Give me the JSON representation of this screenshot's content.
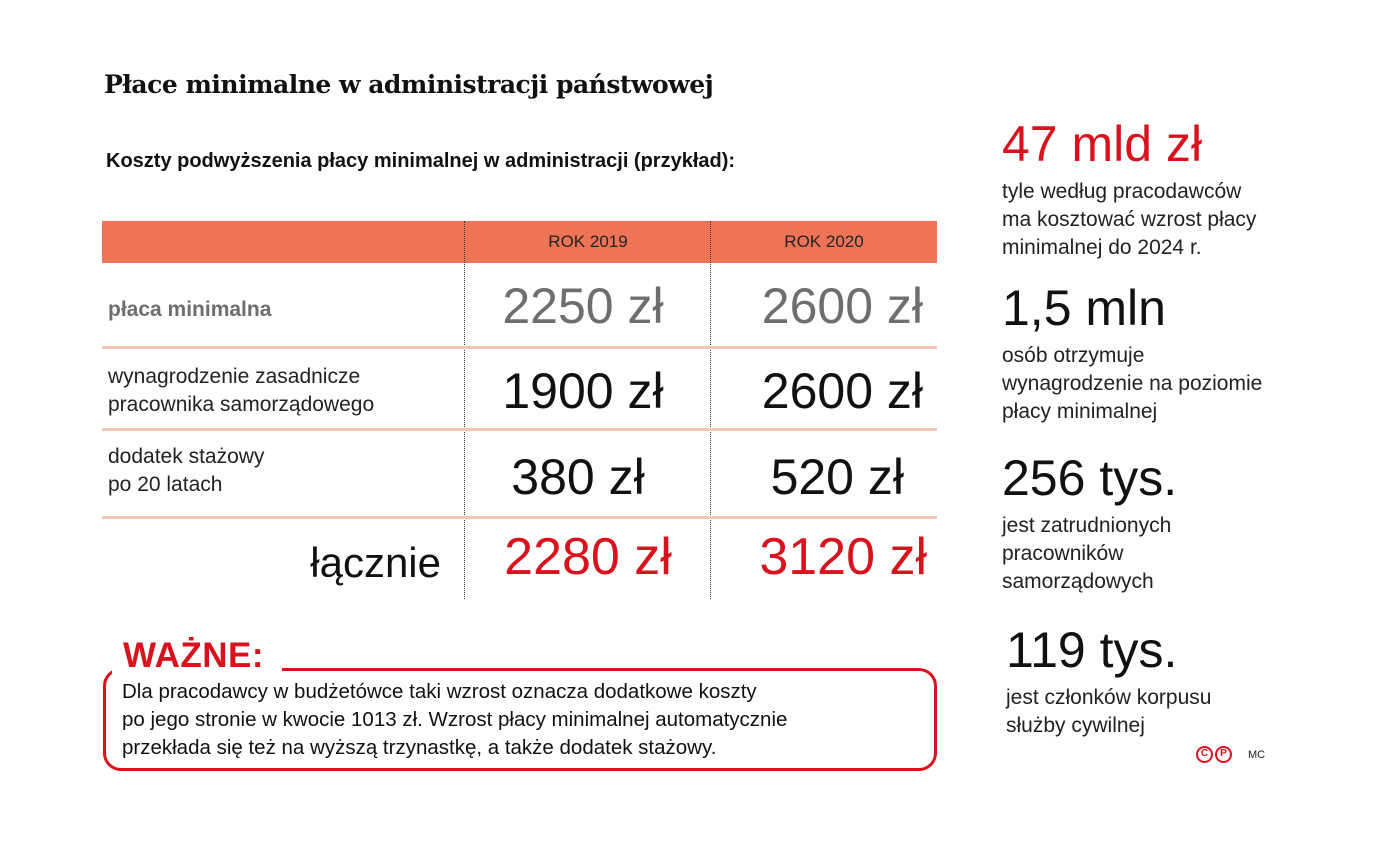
{
  "title": "Płace minimalne w administracji państwowej",
  "subtitle": "Koszty podwyższenia płacy minimalnej w administracji (przykład):",
  "table": {
    "columns": [
      "",
      "ROK 2019",
      "ROK 2020"
    ],
    "rows": [
      {
        "label": "płaca minimalna",
        "v2019": "2250 zł",
        "v2020": "2600 zł"
      },
      {
        "label": "wynagrodzenie zasadnicze\npracownika samorządowego",
        "label_line1": "wynagrodzenie zasadnicze",
        "label_line2": "pracownika samorządowego",
        "v2019": "1900 zł",
        "v2020": "2600 zł"
      },
      {
        "label": "dodatek stażowy\npo 20 latach",
        "label_line1": "dodatek stażowy",
        "label_line2": "po 20 latach",
        "v2019": "380 zł",
        "v2020": "520 zł"
      },
      {
        "label": "łącznie",
        "v2019": "2280 zł",
        "v2020": "3120 zł"
      }
    ]
  },
  "note": {
    "title": "WAŻNE:",
    "lines": [
      "Dla pracodawcy w budżetówce taki wzrost oznacza dodatkowe koszty",
      "po jego stronie w kwocie 1013 zł. Wzrost płacy minimalnej automatycznie",
      "przekłada się też na wyższą trzynastkę, a także dodatek stażowy."
    ]
  },
  "stats": [
    {
      "value": "47 mld zł",
      "lines": [
        "tyle według pracodawców",
        "ma kosztować wzrost płacy",
        "minimalnej do 2024 r."
      ]
    },
    {
      "value": "1,5 mln",
      "lines": [
        "osób otrzymuje",
        "wynagrodzenie na poziomie",
        "płacy minimalnej"
      ]
    },
    {
      "value": "256 tys.",
      "lines": [
        "jest zatrudnionych",
        "pracowników",
        "samorządowych"
      ]
    },
    {
      "value": "119 tys.",
      "lines": [
        "jest członków korpusu",
        "służby cywilnej"
      ]
    }
  ],
  "footer": {
    "icon1": "C",
    "icon2": "P",
    "credit": "MC"
  },
  "colors": {
    "header_bar": "#ef7457",
    "accent_red": "#d8131d",
    "separator": "#f5c5b0",
    "muted_gray": "#6e6e6e"
  }
}
